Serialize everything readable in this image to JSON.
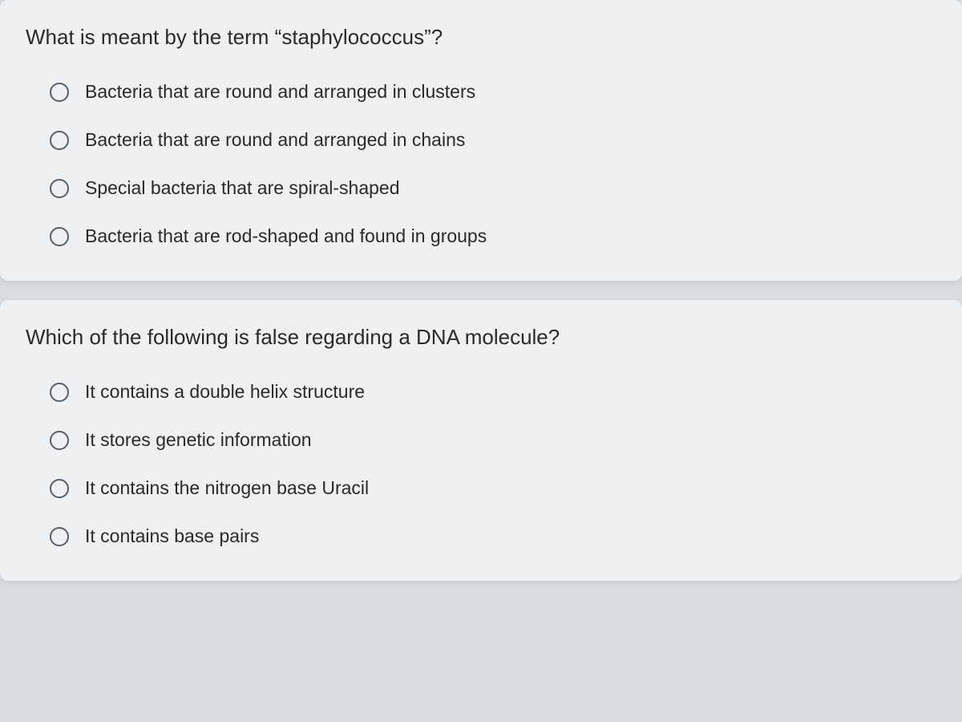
{
  "questions": [
    {
      "prompt": "What is meant by the term “staphylococcus”?",
      "options": [
        "Bacteria that are round and arranged in clusters",
        "Bacteria that are round and arranged in chains",
        "Special bacteria that are spiral-shaped",
        "Bacteria that are rod-shaped and found in groups"
      ]
    },
    {
      "prompt": "Which of the following is false regarding a DNA molecule?",
      "options": [
        "It contains a double helix structure",
        "It stores genetic information",
        "It contains the nitrogen base Uracil",
        "It contains base pairs"
      ]
    }
  ],
  "colors": {
    "page_background": "#d8dce0",
    "card_background": "#eef0f2",
    "text_color": "#2a2a2a",
    "radio_border": "#5a5e66"
  },
  "typography": {
    "question_fontsize": 26,
    "option_fontsize": 23
  }
}
